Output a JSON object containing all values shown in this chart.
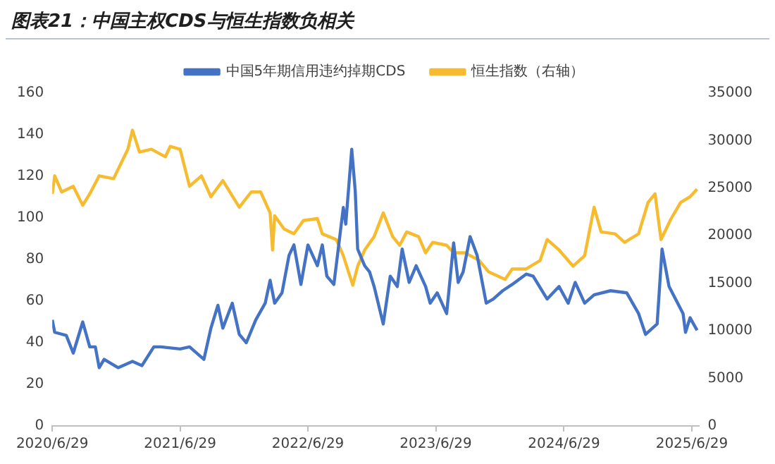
{
  "chart_data": {
    "type": "line",
    "title": "图表21：中国主权CDS与恒生指数负相关",
    "xlim": [
      "2020-06-29",
      "2025-07-20"
    ],
    "xticks": [
      {
        "value": "2020-06-29",
        "label": "2020/6/29"
      },
      {
        "value": "2021-06-29",
        "label": "2021/6/29"
      },
      {
        "value": "2022-06-29",
        "label": "2022/6/29"
      },
      {
        "value": "2023-06-29",
        "label": "2023/6/29"
      },
      {
        "value": "2024-06-29",
        "label": "2024/6/29"
      },
      {
        "value": "2025-06-29",
        "label": "2025/6/29"
      }
    ],
    "ylim": [
      0,
      160
    ],
    "yticks": [
      0,
      20,
      40,
      60,
      80,
      100,
      120,
      140,
      160
    ],
    "y2lim": [
      0,
      35000
    ],
    "y2ticks": [
      0,
      5000,
      10000,
      15000,
      20000,
      25000,
      30000,
      35000
    ],
    "grid": false,
    "legend": "top",
    "marker": "none",
    "line_style": "solid",
    "series": [
      {
        "name": "中国5年期信用违约掉期CDS",
        "color": "#4472c4",
        "x": [
          "2020-06-29",
          "2020-07-06",
          "2020-08-08",
          "2020-08-28",
          "2020-09-24",
          "2020-10-14",
          "2020-10-30",
          "2020-11-10",
          "2020-11-24",
          "2021-01-03",
          "2021-02-13",
          "2021-03-12",
          "2021-04-15",
          "2021-05-05",
          "2021-06-29",
          "2021-07-26",
          "2021-09-05",
          "2021-09-25",
          "2021-10-15",
          "2021-10-29",
          "2021-11-25",
          "2021-12-15",
          "2022-01-04",
          "2022-01-31",
          "2022-02-27",
          "2022-03-13",
          "2022-03-26",
          "2022-04-16",
          "2022-05-06",
          "2022-05-20",
          "2022-06-09",
          "2022-06-29",
          "2022-07-26",
          "2022-08-09",
          "2022-08-22",
          "2022-09-11",
          "2022-09-25",
          "2022-10-08",
          "2022-10-15",
          "2022-11-01",
          "2022-11-11",
          "2022-11-18",
          "2022-12-08",
          "2022-12-22",
          "2023-01-04",
          "2023-01-30",
          "2023-02-19",
          "2023-03-11",
          "2023-03-25",
          "2023-04-14",
          "2023-05-04",
          "2023-05-31",
          "2023-06-13",
          "2023-07-03",
          "2023-07-30",
          "2023-08-19",
          "2023-09-01",
          "2023-09-15",
          "2023-10-05",
          "2023-10-25",
          "2023-11-20",
          "2023-12-10",
          "2024-01-06",
          "2024-02-02",
          "2024-03-13",
          "2024-04-02",
          "2024-05-12",
          "2024-06-15",
          "2024-07-11",
          "2024-07-31",
          "2024-08-27",
          "2024-09-23",
          "2024-11-09",
          "2024-12-25",
          "2025-01-28",
          "2025-02-17",
          "2025-03-22",
          "2025-04-05",
          "2025-04-25",
          "2025-06-04",
          "2025-06-11",
          "2025-06-24",
          "2025-07-14"
        ],
        "values": [
          51,
          45,
          43.5,
          35,
          50,
          38,
          38,
          28,
          32,
          28,
          31,
          29,
          38,
          38,
          37,
          38,
          32,
          47,
          58,
          47,
          59,
          44,
          40,
          51,
          59,
          70,
          59,
          64,
          82,
          87,
          68,
          87,
          77,
          87,
          72,
          68,
          87,
          105,
          97,
          133,
          113,
          85,
          77,
          74,
          67,
          49,
          72,
          67,
          85,
          69,
          77,
          67,
          59,
          64,
          54,
          88,
          69,
          74,
          91,
          82,
          59,
          61,
          65,
          68,
          73,
          72,
          61,
          67,
          59,
          69,
          59,
          63,
          65,
          64,
          54,
          44,
          49,
          85,
          67,
          54,
          45,
          52,
          46
        ]
      },
      {
        "name": "恒生指数（右轴）",
        "color": "#f6bb2f",
        "axis": "y2",
        "x": [
          "2020-06-29",
          "2020-07-06",
          "2020-07-26",
          "2020-08-28",
          "2020-09-24",
          "2020-10-14",
          "2020-11-10",
          "2020-12-21",
          "2021-01-31",
          "2021-02-13",
          "2021-03-05",
          "2021-04-08",
          "2021-05-18",
          "2021-06-01",
          "2021-06-29",
          "2021-07-26",
          "2021-08-29",
          "2021-09-25",
          "2021-10-29",
          "2021-12-15",
          "2022-01-18",
          "2022-02-14",
          "2022-03-13",
          "2022-03-20",
          "2022-03-26",
          "2022-04-22",
          "2022-05-20",
          "2022-06-16",
          "2022-07-26",
          "2022-08-09",
          "2022-09-18",
          "2022-10-08",
          "2022-11-04",
          "2022-11-18",
          "2022-12-08",
          "2023-01-04",
          "2023-01-30",
          "2023-02-26",
          "2023-03-18",
          "2023-04-07",
          "2023-05-11",
          "2023-05-31",
          "2023-06-20",
          "2023-07-30",
          "2023-08-19",
          "2023-09-21",
          "2023-10-31",
          "2023-11-27",
          "2024-01-13",
          "2024-02-02",
          "2024-03-13",
          "2024-04-22",
          "2024-05-12",
          "2024-06-15",
          "2024-07-25",
          "2024-08-27",
          "2024-09-23",
          "2024-10-13",
          "2024-11-22",
          "2024-12-19",
          "2025-01-28",
          "2025-02-24",
          "2025-03-16",
          "2025-04-02",
          "2025-05-01",
          "2025-05-28",
          "2025-06-24",
          "2025-07-14"
        ],
        "values": [
          24400,
          26300,
          24600,
          25200,
          23200,
          24400,
          26300,
          26000,
          29100,
          31100,
          28800,
          29100,
          28300,
          29400,
          29100,
          25200,
          26300,
          24100,
          25800,
          23000,
          24600,
          24600,
          22400,
          18500,
          22100,
          20700,
          20200,
          21600,
          21800,
          20200,
          19600,
          17900,
          14800,
          16800,
          18500,
          19900,
          22400,
          19900,
          19000,
          20400,
          19900,
          18200,
          19300,
          19000,
          18200,
          18200,
          17400,
          16200,
          15400,
          16500,
          16500,
          17400,
          19600,
          18500,
          16800,
          17900,
          23000,
          20400,
          20200,
          19300,
          20200,
          23500,
          24400,
          19600,
          21800,
          23500,
          24100,
          24900
        ]
      }
    ]
  }
}
